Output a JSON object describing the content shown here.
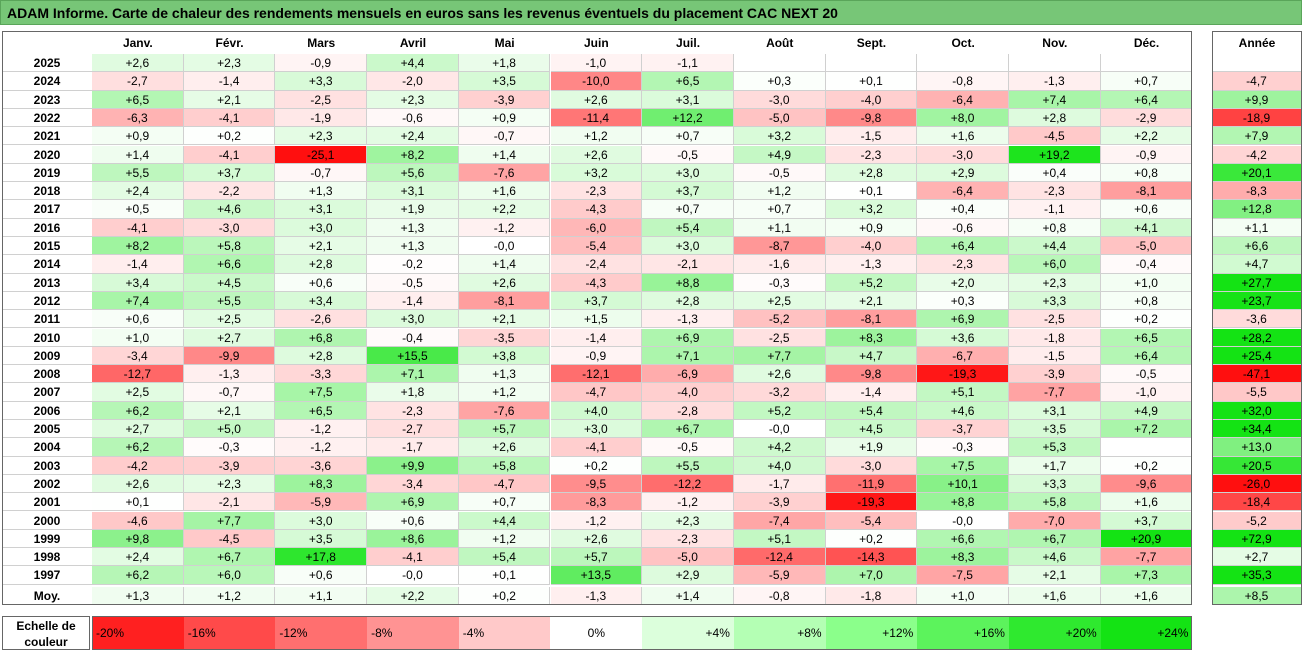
{
  "title": "ADAM Informe. Carte de chaleur des rendements mensuels en euros sans les revenus éventuels du placement CAC NEXT 20",
  "chart_data": {
    "type": "heatmap",
    "title": "ADAM Informe. Carte de chaleur des rendements mensuels en euros sans les revenus éventuels du placement CAC NEXT 20",
    "columns": [
      "Janv.",
      "Févr.",
      "Mars",
      "Avril",
      "Mai",
      "Juin",
      "Juil.",
      "Août",
      "Sept.",
      "Oct.",
      "Nov.",
      "Déc."
    ],
    "annual_label": "Année",
    "rows": [
      {
        "year": "2025",
        "values": [
          "+2,6",
          "+2,3",
          "-0,9",
          "+4,4",
          "+1,8",
          "-1,0",
          "-1,1",
          "",
          "",
          "",
          "",
          ""
        ],
        "annual": ""
      },
      {
        "year": "2024",
        "values": [
          "-2,7",
          "-1,4",
          "+3,3",
          "-2,0",
          "+3,5",
          "-10,0",
          "+6,5",
          "+0,3",
          "+0,1",
          "-0,8",
          "-1,3",
          "+0,7"
        ],
        "annual": "-4,7"
      },
      {
        "year": "2023",
        "values": [
          "+6,5",
          "+2,1",
          "-2,5",
          "+2,3",
          "-3,9",
          "+2,6",
          "+3,1",
          "-3,0",
          "-4,0",
          "-6,4",
          "+7,4",
          "+6,4"
        ],
        "annual": "+9,9"
      },
      {
        "year": "2022",
        "values": [
          "-6,3",
          "-4,1",
          "-1,9",
          "-0,6",
          "+0,9",
          "-11,4",
          "+12,2",
          "-5,0",
          "-9,8",
          "+8,0",
          "+2,8",
          "-2,9"
        ],
        "annual": "-18,9"
      },
      {
        "year": "2021",
        "values": [
          "+0,9",
          "+0,2",
          "+2,3",
          "+2,4",
          "-0,7",
          "+1,2",
          "+0,7",
          "+3,2",
          "-1,5",
          "+1,6",
          "-4,5",
          "+2,2"
        ],
        "annual": "+7,9"
      },
      {
        "year": "2020",
        "values": [
          "+1,4",
          "-4,1",
          "-25,1",
          "+8,2",
          "+1,4",
          "+2,6",
          "-0,5",
          "+4,9",
          "-2,3",
          "-3,0",
          "+19,2",
          "-0,9"
        ],
        "annual": "-4,2"
      },
      {
        "year": "2019",
        "values": [
          "+5,5",
          "+3,7",
          "-0,7",
          "+5,6",
          "-7,6",
          "+3,2",
          "+3,0",
          "-0,5",
          "+2,8",
          "+2,9",
          "+0,4",
          "+0,8"
        ],
        "annual": "+20,1"
      },
      {
        "year": "2018",
        "values": [
          "+2,4",
          "-2,2",
          "+1,3",
          "+3,1",
          "+1,6",
          "-2,3",
          "+3,7",
          "+1,2",
          "+0,1",
          "-6,4",
          "-2,3",
          "-8,1"
        ],
        "annual": "-8,3"
      },
      {
        "year": "2017",
        "values": [
          "+0,5",
          "+4,6",
          "+3,1",
          "+1,9",
          "+2,2",
          "-4,3",
          "+0,7",
          "+0,7",
          "+3,2",
          "+0,4",
          "-1,1",
          "+0,6"
        ],
        "annual": "+12,8"
      },
      {
        "year": "2016",
        "values": [
          "-4,1",
          "-3,0",
          "+3,0",
          "+1,3",
          "-1,2",
          "-6,0",
          "+5,4",
          "+1,1",
          "+0,9",
          "-0,6",
          "+0,8",
          "+4,1"
        ],
        "annual": "+1,1"
      },
      {
        "year": "2015",
        "values": [
          "+8,2",
          "+5,8",
          "+2,1",
          "+1,3",
          "-0,0",
          "-5,4",
          "+3,0",
          "-8,7",
          "-4,0",
          "+6,4",
          "+4,4",
          "-5,0"
        ],
        "annual": "+6,6"
      },
      {
        "year": "2014",
        "values": [
          "-1,4",
          "+6,6",
          "+2,8",
          "-0,2",
          "+1,4",
          "-2,4",
          "-2,1",
          "-1,6",
          "-1,3",
          "-2,3",
          "+6,0",
          "-0,4"
        ],
        "annual": "+4,7"
      },
      {
        "year": "2013",
        "values": [
          "+3,4",
          "+4,5",
          "+0,6",
          "-0,5",
          "+2,6",
          "-4,3",
          "+8,8",
          "-0,3",
          "+5,2",
          "+2,0",
          "+2,3",
          "+1,0"
        ],
        "annual": "+27,7"
      },
      {
        "year": "2012",
        "values": [
          "+7,4",
          "+5,5",
          "+3,4",
          "-1,4",
          "-8,1",
          "+3,7",
          "+2,8",
          "+2,5",
          "+2,1",
          "+0,3",
          "+3,3",
          "+0,8"
        ],
        "annual": "+23,7"
      },
      {
        "year": "2011",
        "values": [
          "+0,6",
          "+2,5",
          "-2,6",
          "+3,0",
          "+2,1",
          "+1,5",
          "-1,3",
          "-5,2",
          "-8,1",
          "+6,9",
          "-2,5",
          "+0,2"
        ],
        "annual": "-3,6"
      },
      {
        "year": "2010",
        "values": [
          "+1,0",
          "+2,7",
          "+6,8",
          "-0,4",
          "-3,5",
          "-1,4",
          "+6,9",
          "-2,5",
          "+8,3",
          "+3,6",
          "-1,8",
          "+6,5"
        ],
        "annual": "+28,2"
      },
      {
        "year": "2009",
        "values": [
          "-3,4",
          "-9,9",
          "+2,8",
          "+15,5",
          "+3,8",
          "-0,9",
          "+7,1",
          "+7,7",
          "+4,7",
          "-6,7",
          "-1,5",
          "+6,4"
        ],
        "annual": "+25,4"
      },
      {
        "year": "2008",
        "values": [
          "-12,7",
          "-1,3",
          "-3,3",
          "+7,1",
          "+1,3",
          "-12,1",
          "-6,9",
          "+2,6",
          "-9,8",
          "-19,3",
          "-3,9",
          "-0,5"
        ],
        "annual": "-47,1"
      },
      {
        "year": "2007",
        "values": [
          "+2,5",
          "-0,7",
          "+7,5",
          "+1,8",
          "+1,2",
          "-4,7",
          "-4,0",
          "-3,2",
          "-1,4",
          "+5,1",
          "-7,7",
          "-1,0"
        ],
        "annual": "-5,5"
      },
      {
        "year": "2006",
        "values": [
          "+6,2",
          "+2,1",
          "+6,5",
          "-2,3",
          "-7,6",
          "+4,0",
          "-2,8",
          "+5,2",
          "+5,4",
          "+4,6",
          "+3,1",
          "+4,9"
        ],
        "annual": "+32,0"
      },
      {
        "year": "2005",
        "values": [
          "+2,7",
          "+5,0",
          "-1,2",
          "-2,7",
          "+5,7",
          "+3,0",
          "+6,7",
          "-0,0",
          "+4,5",
          "-3,7",
          "+3,5",
          "+7,2"
        ],
        "annual": "+34,4"
      },
      {
        "year": "2004",
        "values": [
          "+6,2",
          "-0,3",
          "-1,2",
          "-1,7",
          "+2,6",
          "-4,1",
          "-0,5",
          "+4,2",
          "+1,9",
          "-0,3",
          "+5,3",
          ""
        ],
        "annual": "+13,0"
      },
      {
        "year": "2003",
        "values": [
          "-4,2",
          "-3,9",
          "-3,6",
          "+9,9",
          "+5,8",
          "+0,2",
          "+5,5",
          "+4,0",
          "-3,0",
          "+7,5",
          "+1,7",
          "+0,2"
        ],
        "annual": "+20,5"
      },
      {
        "year": "2002",
        "values": [
          "+2,6",
          "+2,3",
          "+8,3",
          "-3,4",
          "-4,7",
          "-9,5",
          "-12,2",
          "-1,7",
          "-11,9",
          "+10,1",
          "+3,3",
          "-9,6"
        ],
        "annual": "-26,0"
      },
      {
        "year": "2001",
        "values": [
          "+0,1",
          "-2,1",
          "-5,9",
          "+6,9",
          "+0,7",
          "-8,3",
          "-1,2",
          "-3,9",
          "-19,3",
          "+8,8",
          "+5,8",
          "+1,6"
        ],
        "annual": "-18,4"
      },
      {
        "year": "2000",
        "values": [
          "-4,6",
          "+7,7",
          "+3,0",
          "+0,6",
          "+4,4",
          "-1,2",
          "+2,3",
          "-7,4",
          "-5,4",
          "-0,0",
          "-7,0",
          "+3,7"
        ],
        "annual": "-5,2"
      },
      {
        "year": "1999",
        "values": [
          "+9,8",
          "-4,5",
          "+3,5",
          "+8,6",
          "+1,2",
          "+2,6",
          "-2,3",
          "+5,1",
          "+0,2",
          "+6,6",
          "+6,7",
          "+20,9"
        ],
        "annual": "+72,9"
      },
      {
        "year": "1998",
        "values": [
          "+2,4",
          "+6,7",
          "+17,8",
          "-4,1",
          "+5,4",
          "+5,7",
          "-5,0",
          "-12,4",
          "-14,3",
          "+8,3",
          "+4,6",
          "-7,7"
        ],
        "annual": "+2,7"
      },
      {
        "year": "1997",
        "values": [
          "+6,2",
          "+6,0",
          "+0,6",
          "-0,0",
          "+0,1",
          "+13,5",
          "+2,9",
          "-5,9",
          "+7,0",
          "-7,5",
          "+2,1",
          "+7,3"
        ],
        "annual": "+35,3"
      }
    ],
    "average": {
      "label": "Moy.",
      "values": [
        "+1,3",
        "+1,2",
        "+1,1",
        "+2,2",
        "+0,2",
        "-1,3",
        "+1,4",
        "-0,8",
        "-1,8",
        "+1,0",
        "+1,6",
        "+1,6"
      ],
      "annual": "+8,5"
    },
    "scale": {
      "label_line1": "Echelle de",
      "label_line2": "couleur",
      "stops": [
        {
          "label": "-20%",
          "color": "#ff2020",
          "align": "left"
        },
        {
          "label": "-16%",
          "color": "#ff4a4a",
          "align": "left"
        },
        {
          "label": "-12%",
          "color": "#ff6f6f",
          "align": "left"
        },
        {
          "label": "-8%",
          "color": "#ff9393",
          "align": "left"
        },
        {
          "label": "-4%",
          "color": "#ffc9c9",
          "align": "left"
        },
        {
          "label": "0%",
          "color": "#ffffff",
          "align": "center"
        },
        {
          "label": "+4%",
          "color": "#dcffdc",
          "align": "right"
        },
        {
          "label": "+8%",
          "color": "#b4ffb4",
          "align": "right"
        },
        {
          "label": "+12%",
          "color": "#8bff8b",
          "align": "right"
        },
        {
          "label": "+16%",
          "color": "#5cf35c",
          "align": "right"
        },
        {
          "label": "+20%",
          "color": "#2fe92f",
          "align": "right"
        },
        {
          "label": "+24%",
          "color": "#14e314",
          "align": "right"
        }
      ]
    }
  }
}
